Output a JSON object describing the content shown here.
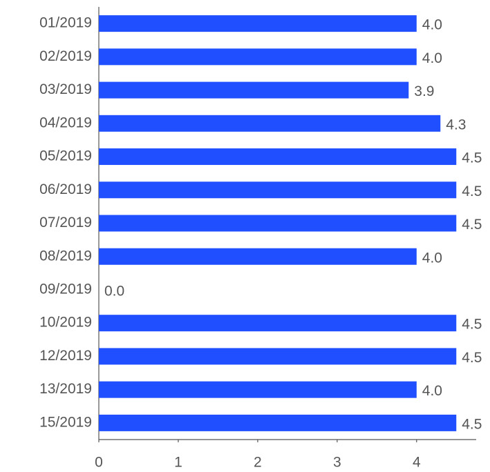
{
  "chart_data": {
    "type": "hbar",
    "categories": [
      "01/2019",
      "02/2019",
      "03/2019",
      "04/2019",
      "05/2019",
      "06/2019",
      "07/2019",
      "08/2019",
      "09/2019",
      "10/2019",
      "12/2019",
      "13/2019",
      "15/2019"
    ],
    "values": [
      4.0,
      4.0,
      3.9,
      4.3,
      4.5,
      4.5,
      4.5,
      4.0,
      0.0,
      4.5,
      4.5,
      4.0,
      4.5
    ],
    "value_labels": [
      "4.0",
      "4.0",
      "3.9",
      "4.3",
      "4.5",
      "4.5",
      "4.5",
      "4.0",
      "0.0",
      "4.5",
      "4.5",
      "4.0",
      "4.5"
    ],
    "color": "#1f4fff",
    "xlim": [
      0,
      4.75
    ],
    "xticks": [
      0,
      1,
      2,
      3,
      4
    ],
    "grid": false
  }
}
